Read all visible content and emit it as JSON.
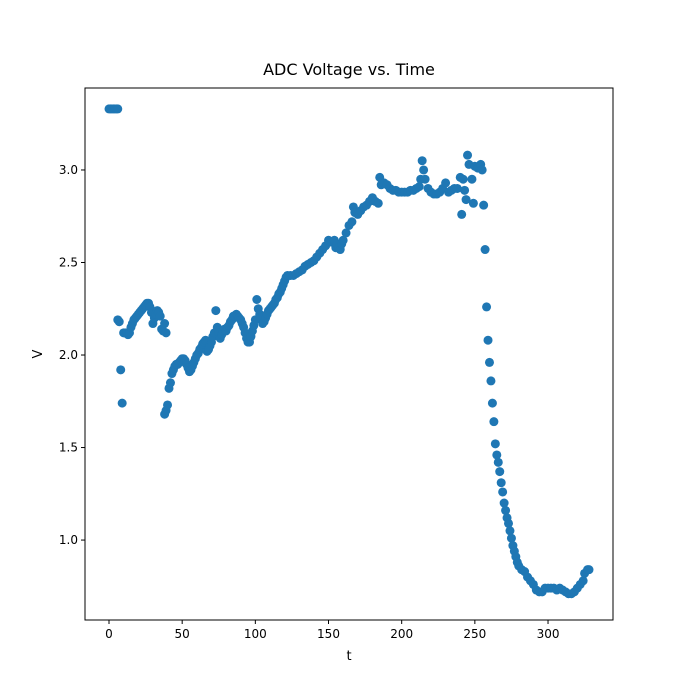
{
  "chart_data": {
    "type": "scatter",
    "title": "ADC Voltage vs. Time",
    "xlabel": "t",
    "ylabel": "V",
    "series": [
      {
        "color": "#1f77b4",
        "x": [
          0,
          1,
          2,
          3,
          4,
          5,
          6,
          6,
          7,
          8,
          9,
          10,
          11,
          12,
          13,
          14,
          15,
          16,
          17,
          18,
          19,
          20,
          21,
          22,
          23,
          24,
          25,
          26,
          27,
          28,
          29,
          30,
          31,
          32,
          33,
          34,
          35,
          36,
          37,
          38,
          39,
          38,
          39,
          40,
          41,
          42,
          43,
          44,
          45,
          46,
          47,
          48,
          49,
          50,
          51,
          52,
          53,
          54,
          55,
          56,
          57,
          58,
          59,
          60,
          61,
          62,
          63,
          64,
          65,
          66,
          67,
          68,
          69,
          70,
          71,
          72,
          73,
          74,
          75,
          76,
          77,
          78,
          79,
          80,
          81,
          82,
          83,
          84,
          85,
          86,
          87,
          88,
          89,
          90,
          91,
          92,
          93,
          94,
          95,
          96,
          97,
          98,
          99,
          100,
          101,
          102,
          103,
          104,
          105,
          106,
          107,
          108,
          109,
          110,
          111,
          112,
          113,
          114,
          115,
          116,
          117,
          118,
          119,
          120,
          121,
          122,
          124,
          126,
          128,
          130,
          132,
          134,
          136,
          138,
          140,
          142,
          144,
          146,
          148,
          150,
          152,
          154,
          155,
          156,
          157,
          158,
          159,
          160,
          162,
          164,
          166,
          167,
          168,
          170,
          172,
          174,
          176,
          178,
          180,
          182,
          184,
          185,
          186,
          188,
          190,
          192,
          194,
          196,
          198,
          200,
          202,
          204,
          206,
          208,
          210,
          212,
          213,
          214,
          215,
          216,
          218,
          220,
          222,
          224,
          226,
          228,
          230,
          232,
          234,
          236,
          238,
          240,
          241,
          242,
          243,
          244,
          245,
          246,
          248,
          249,
          250,
          252,
          254,
          255,
          256,
          257,
          258,
          259,
          260,
          261,
          262,
          263,
          264,
          265,
          266,
          267,
          268,
          269,
          270,
          271,
          272,
          273,
          274,
          275,
          276,
          277,
          278,
          279,
          280,
          282,
          284,
          286,
          288,
          290,
          292,
          294,
          296,
          298,
          300,
          302,
          304,
          306,
          308,
          310,
          312,
          314,
          316,
          318,
          320,
          322,
          324,
          325,
          327,
          328
        ],
        "values": [
          3.33,
          3.33,
          3.33,
          3.33,
          3.33,
          3.33,
          3.33,
          2.19,
          2.18,
          1.92,
          1.74,
          2.12,
          2.12,
          2.12,
          2.11,
          2.12,
          2.15,
          2.17,
          2.19,
          2.2,
          2.21,
          2.22,
          2.23,
          2.24,
          2.25,
          2.26,
          2.27,
          2.28,
          2.28,
          2.26,
          2.23,
          2.17,
          2.2,
          2.22,
          2.24,
          2.23,
          2.21,
          2.14,
          2.13,
          2.17,
          2.12,
          1.68,
          1.7,
          1.73,
          1.82,
          1.85,
          1.9,
          1.92,
          1.94,
          1.95,
          1.95,
          1.96,
          1.97,
          1.98,
          1.98,
          1.97,
          1.95,
          1.93,
          1.91,
          1.92,
          1.94,
          1.96,
          1.98,
          2.0,
          2.01,
          2.03,
          2.04,
          2.06,
          2.07,
          2.08,
          2.02,
          2.03,
          2.05,
          2.07,
          2.1,
          2.12,
          2.24,
          2.15,
          2.12,
          2.09,
          2.11,
          2.13,
          2.14,
          2.13,
          2.15,
          2.16,
          2.18,
          2.19,
          2.21,
          2.21,
          2.22,
          2.21,
          2.2,
          2.19,
          2.17,
          2.15,
          2.12,
          2.09,
          2.07,
          2.07,
          2.1,
          2.13,
          2.16,
          2.19,
          2.3,
          2.25,
          2.22,
          2.2,
          2.17,
          2.18,
          2.2,
          2.22,
          2.24,
          2.25,
          2.26,
          2.27,
          2.28,
          2.3,
          2.31,
          2.33,
          2.34,
          2.36,
          2.38,
          2.4,
          2.42,
          2.43,
          2.43,
          2.43,
          2.44,
          2.45,
          2.46,
          2.48,
          2.49,
          2.5,
          2.51,
          2.53,
          2.55,
          2.57,
          2.59,
          2.62,
          2.61,
          2.62,
          2.58,
          2.6,
          2.58,
          2.57,
          2.6,
          2.62,
          2.66,
          2.7,
          2.72,
          2.8,
          2.77,
          2.76,
          2.78,
          2.8,
          2.81,
          2.83,
          2.85,
          2.83,
          2.82,
          2.96,
          2.92,
          2.93,
          2.92,
          2.9,
          2.89,
          2.89,
          2.88,
          2.88,
          2.88,
          2.88,
          2.89,
          2.89,
          2.9,
          2.91,
          2.95,
          3.05,
          3.0,
          2.95,
          2.9,
          2.88,
          2.87,
          2.87,
          2.88,
          2.9,
          2.93,
          2.88,
          2.89,
          2.9,
          2.9,
          2.96,
          2.76,
          2.95,
          2.89,
          2.84,
          3.08,
          3.03,
          2.95,
          2.82,
          3.02,
          3.01,
          3.03,
          3.0,
          2.81,
          2.57,
          2.26,
          2.08,
          1.96,
          1.86,
          1.74,
          1.64,
          1.52,
          1.46,
          1.42,
          1.37,
          1.31,
          1.26,
          1.2,
          1.16,
          1.12,
          1.09,
          1.05,
          1.01,
          0.97,
          0.94,
          0.91,
          0.88,
          0.86,
          0.84,
          0.83,
          0.8,
          0.78,
          0.76,
          0.73,
          0.72,
          0.72,
          0.74,
          0.74,
          0.74,
          0.74,
          0.73,
          0.74,
          0.73,
          0.72,
          0.71,
          0.71,
          0.72,
          0.74,
          0.76,
          0.78,
          0.82,
          0.84,
          0.84
        ]
      }
    ],
    "xlim": [
      -16.4,
      344.4
    ],
    "ylim": [
      0.568,
      3.443
    ],
    "xticks": [
      0,
      50,
      100,
      150,
      200,
      250,
      300
    ],
    "yticks": [
      {
        "value": 1,
        "label": "1.0"
      },
      1.5,
      {
        "value": 2,
        "label": "2.0"
      },
      2.5,
      {
        "value": 3,
        "label": "3.0"
      }
    ]
  }
}
